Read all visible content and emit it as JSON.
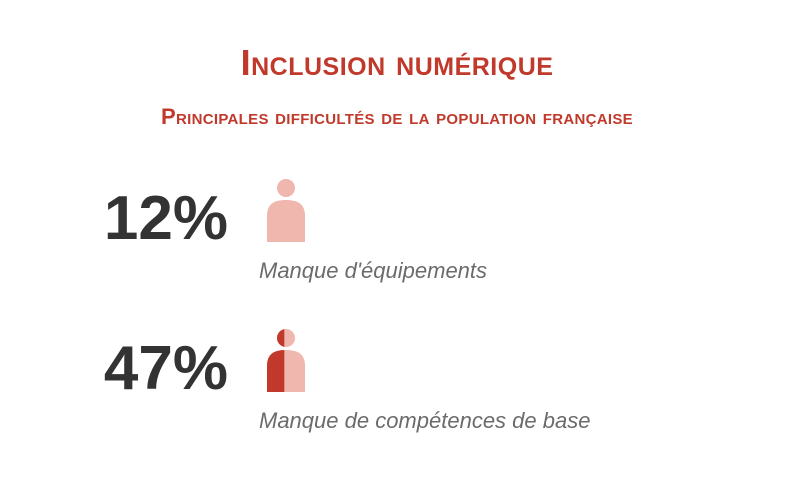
{
  "title": "Inclusion numérique",
  "subtitle": "Principales difficultés de la population française",
  "colors": {
    "accent": "#c0392b",
    "figure_fill": "#c0392b",
    "figure_empty": "#f0b7ae",
    "value_text": "#333333",
    "caption_text": "#6b6b6b"
  },
  "stats": [
    {
      "value_label": "12%",
      "caption": "Manque d'équipements",
      "icon": "person-icon"
    },
    {
      "value_label": "47%",
      "caption": "Manque de compétences de base",
      "icon": "person-icon"
    }
  ],
  "chart_data": {
    "type": "bar",
    "title": "Inclusion numérique",
    "subtitle": "Principales difficultés de la population française",
    "categories": [
      "Manque d'équipements",
      "Manque de compétences de base"
    ],
    "values": [
      12,
      47
    ],
    "unit": "%",
    "ylim": [
      0,
      100
    ]
  }
}
